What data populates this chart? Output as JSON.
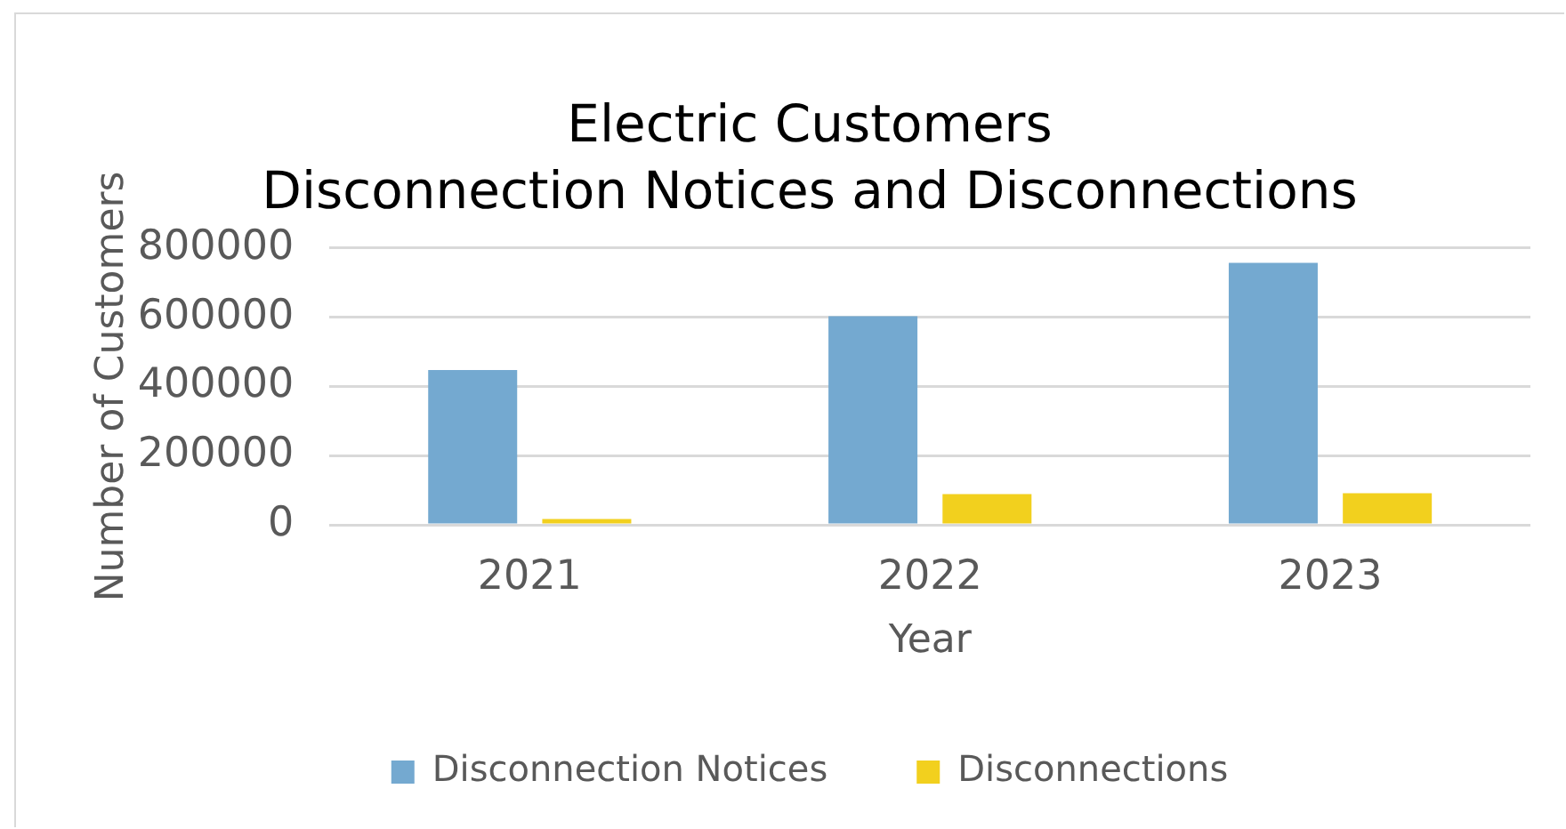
{
  "chart_data": {
    "type": "bar",
    "title": "Electric Customers\nDisconnection Notices and Disconnections",
    "xlabel": "Year",
    "ylabel": "Number of Customers",
    "categories": [
      "2021",
      "2022",
      "2023"
    ],
    "series": [
      {
        "name": "Disconnection Notices",
        "color": "#74a9d0",
        "values": [
          447000,
          603000,
          757000
        ]
      },
      {
        "name": "Disconnections",
        "color": "#f2d01e",
        "values": [
          17000,
          89000,
          91000
        ]
      }
    ],
    "ylim": [
      0,
      800000
    ],
    "yticks": [
      0,
      200000,
      400000,
      600000,
      800000
    ],
    "grid": "y",
    "legend": "bottom"
  }
}
